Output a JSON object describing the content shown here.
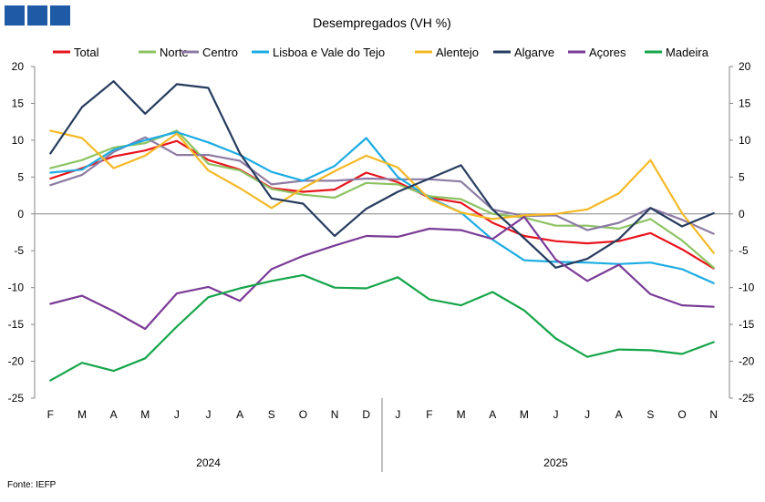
{
  "logo": {
    "color": "#1f5aa6"
  },
  "source": "Fonte: IEFP",
  "chart_data": {
    "type": "line",
    "title": "Desempregados (VH %)",
    "categories": [
      "F",
      "M",
      "A",
      "M",
      "J",
      "J",
      "A",
      "S",
      "O",
      "N",
      "D",
      "J",
      "F",
      "M",
      "A",
      "M",
      "J",
      "J",
      "A",
      "S",
      "O",
      "N"
    ],
    "years": [
      {
        "label": "2024",
        "from": 0,
        "to": 10
      },
      {
        "label": "2025",
        "from": 11,
        "to": 21
      }
    ],
    "ylim": [
      -25,
      20
    ],
    "yticks": [
      20,
      15,
      10,
      5,
      0,
      -5,
      -10,
      -15,
      -20,
      -25
    ],
    "grid": false,
    "legend_position": "top",
    "series": [
      {
        "name": "Total",
        "color": "#e8141b",
        "values": [
          4.8,
          6.2,
          7.8,
          8.6,
          9.9,
          7.3,
          6.0,
          3.5,
          3.0,
          3.3,
          5.6,
          4.3,
          2.2,
          1.5,
          -1.2,
          -3.0,
          -3.7,
          -4.0,
          -3.7,
          -2.6,
          -4.8,
          -7.4
        ]
      },
      {
        "name": "Norte",
        "color": "#8dc363",
        "values": [
          6.2,
          7.3,
          9.0,
          9.6,
          11.3,
          6.8,
          5.9,
          3.4,
          2.6,
          2.2,
          4.2,
          4.0,
          2.4,
          2.0,
          0.0,
          -0.5,
          -1.6,
          -1.6,
          -2.0,
          -0.7,
          -3.6,
          -7.3
        ]
      },
      {
        "name": "Centro",
        "color": "#8d7ba3",
        "values": [
          3.9,
          5.3,
          8.4,
          10.4,
          8.0,
          8.0,
          7.2,
          4.0,
          4.5,
          4.5,
          4.8,
          4.7,
          4.7,
          4.4,
          0.6,
          -0.3,
          -0.2,
          -2.2,
          -1.2,
          0.8,
          -0.8,
          -2.7
        ]
      },
      {
        "name": "Lisboa e Vale do Tejo",
        "color": "#1cace3",
        "values": [
          5.6,
          6.0,
          8.7,
          10.0,
          11.1,
          9.7,
          8.0,
          5.7,
          4.5,
          6.5,
          10.3,
          5.0,
          2.2,
          0.2,
          -3.5,
          -6.3,
          -6.5,
          -6.6,
          -6.8,
          -6.6,
          -7.5,
          -9.4
        ]
      },
      {
        "name": "Alentejo",
        "color": "#f5b925",
        "values": [
          11.3,
          10.3,
          6.2,
          7.9,
          10.9,
          5.9,
          3.5,
          0.8,
          3.5,
          5.8,
          7.9,
          6.3,
          2.0,
          0.2,
          -0.7,
          -0.2,
          0.0,
          0.6,
          2.8,
          7.3,
          0.1,
          -5.3
        ]
      },
      {
        "name": "Algarve",
        "color": "#263c5e",
        "values": [
          8.2,
          14.5,
          18.0,
          13.6,
          17.6,
          17.1,
          8.2,
          2.1,
          1.4,
          -3.0,
          0.7,
          3.0,
          4.8,
          6.6,
          0.6,
          -3.3,
          -7.3,
          -6.1,
          -3.4,
          0.8,
          -1.7,
          0.1
        ]
      },
      {
        "name": "Açores",
        "color": "#7a3b96",
        "values": [
          -12.2,
          -11.1,
          -13.2,
          -15.6,
          -10.8,
          -9.9,
          -11.8,
          -7.5,
          -5.7,
          -4.3,
          -3.0,
          -3.1,
          -2.0,
          -2.2,
          -3.4,
          -0.4,
          -6.2,
          -9.1,
          -6.9,
          -10.9,
          -12.4,
          -12.6
        ]
      },
      {
        "name": "Madeira",
        "color": "#15a54a",
        "values": [
          -22.6,
          -20.2,
          -21.3,
          -19.6,
          -15.3,
          -11.3,
          -10.1,
          -9.1,
          -8.3,
          -10.0,
          -10.1,
          -8.6,
          -11.6,
          -12.4,
          -10.6,
          -13.1,
          -16.9,
          -19.4,
          -18.4,
          -18.5,
          -19.0,
          -17.4
        ]
      }
    ]
  }
}
